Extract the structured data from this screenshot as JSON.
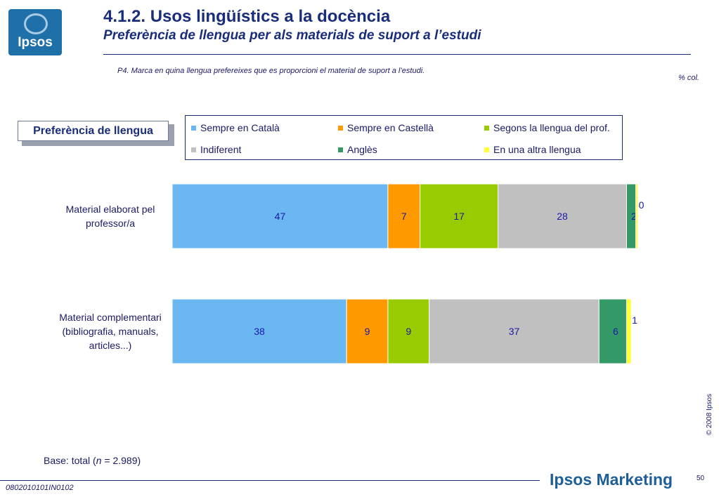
{
  "header": {
    "logo_text": "Ipsos",
    "title": "4.1.2. Usos lingüístics a la docència",
    "subtitle": "Preferència de llengua per als materials de suport a l’estudi"
  },
  "question": "P4. Marca en quina llengua prefereixes que es proporcioni el material de suport a l’estudi.",
  "unit_note": "% col.",
  "pref_box_label": "Preferència de llengua",
  "chart_data": {
    "type": "bar",
    "orientation": "horizontal",
    "stacked": true,
    "categories": [
      "Material elaborat pel professor/a",
      "Material complementari (bibliografia, manuals, articles...)"
    ],
    "series": [
      {
        "name": "Sempre en Català",
        "color": "#6bb7f2",
        "values": [
          47,
          38
        ]
      },
      {
        "name": "Sempre en Castellà",
        "color": "#ff9900",
        "values": [
          7,
          9
        ]
      },
      {
        "name": "Segons la llengua del prof.",
        "color": "#99cc00",
        "values": [
          17,
          9
        ]
      },
      {
        "name": "Indiferent",
        "color": "#c0c0c0",
        "values": [
          28,
          37
        ]
      },
      {
        "name": "Anglès",
        "color": "#339966",
        "values": [
          2,
          6
        ]
      },
      {
        "name": "En una altra llengua",
        "color": "#ffff33",
        "values": [
          0,
          1
        ]
      }
    ],
    "xlim": [
      0,
      100
    ],
    "legend": "top"
  },
  "base_note": {
    "prefix": "Base: total (",
    "n_symbol": "n",
    "suffix": " = 2.989)"
  },
  "footer": {
    "copyright": "© 2008 Ipsos",
    "brand": "Ipsos Marketing",
    "page": "50",
    "code": "0802010101IN0102"
  }
}
